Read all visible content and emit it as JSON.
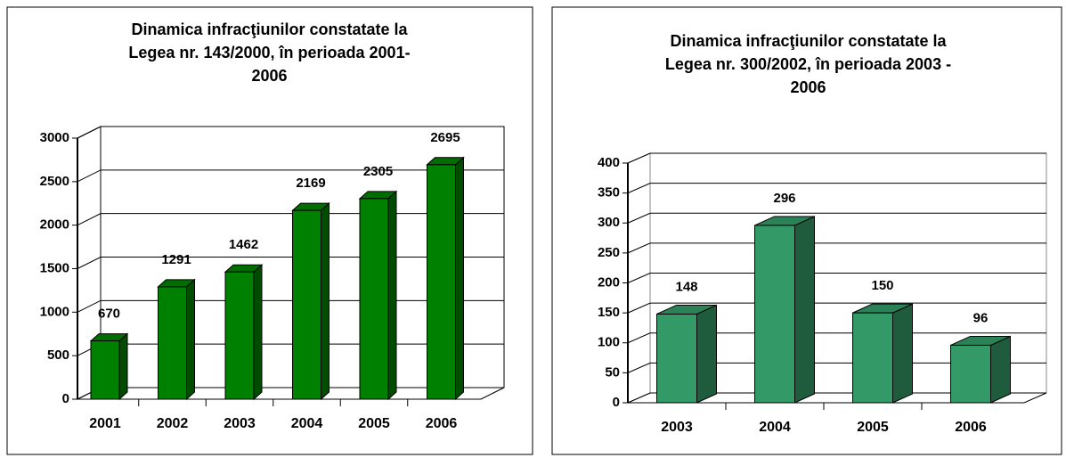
{
  "chart_data": [
    {
      "type": "bar",
      "title": "Dinamica infracţiunilor constatate la\nLegea nr. 143/2000, în perioada 2001-\n2006",
      "categories": [
        "2001",
        "2002",
        "2003",
        "2004",
        "2005",
        "2006"
      ],
      "values": [
        670,
        1291,
        1462,
        2169,
        2305,
        2695
      ],
      "color": "#008000",
      "ylim": [
        0,
        3000
      ],
      "yticks": [
        0,
        500,
        1000,
        1500,
        2000,
        2500,
        3000
      ],
      "grid": true
    },
    {
      "type": "bar",
      "title": "Dinamica infracţiunilor constatate la\nLegea nr. 300/2002,  în perioada 2003 -\n2006",
      "categories": [
        "2003",
        "2004",
        "2005",
        "2006"
      ],
      "values": [
        148,
        296,
        150,
        96
      ],
      "color": "#339966",
      "ylim": [
        0,
        400
      ],
      "yticks": [
        0,
        50,
        100,
        150,
        200,
        250,
        300,
        350,
        400
      ],
      "grid": true
    }
  ]
}
